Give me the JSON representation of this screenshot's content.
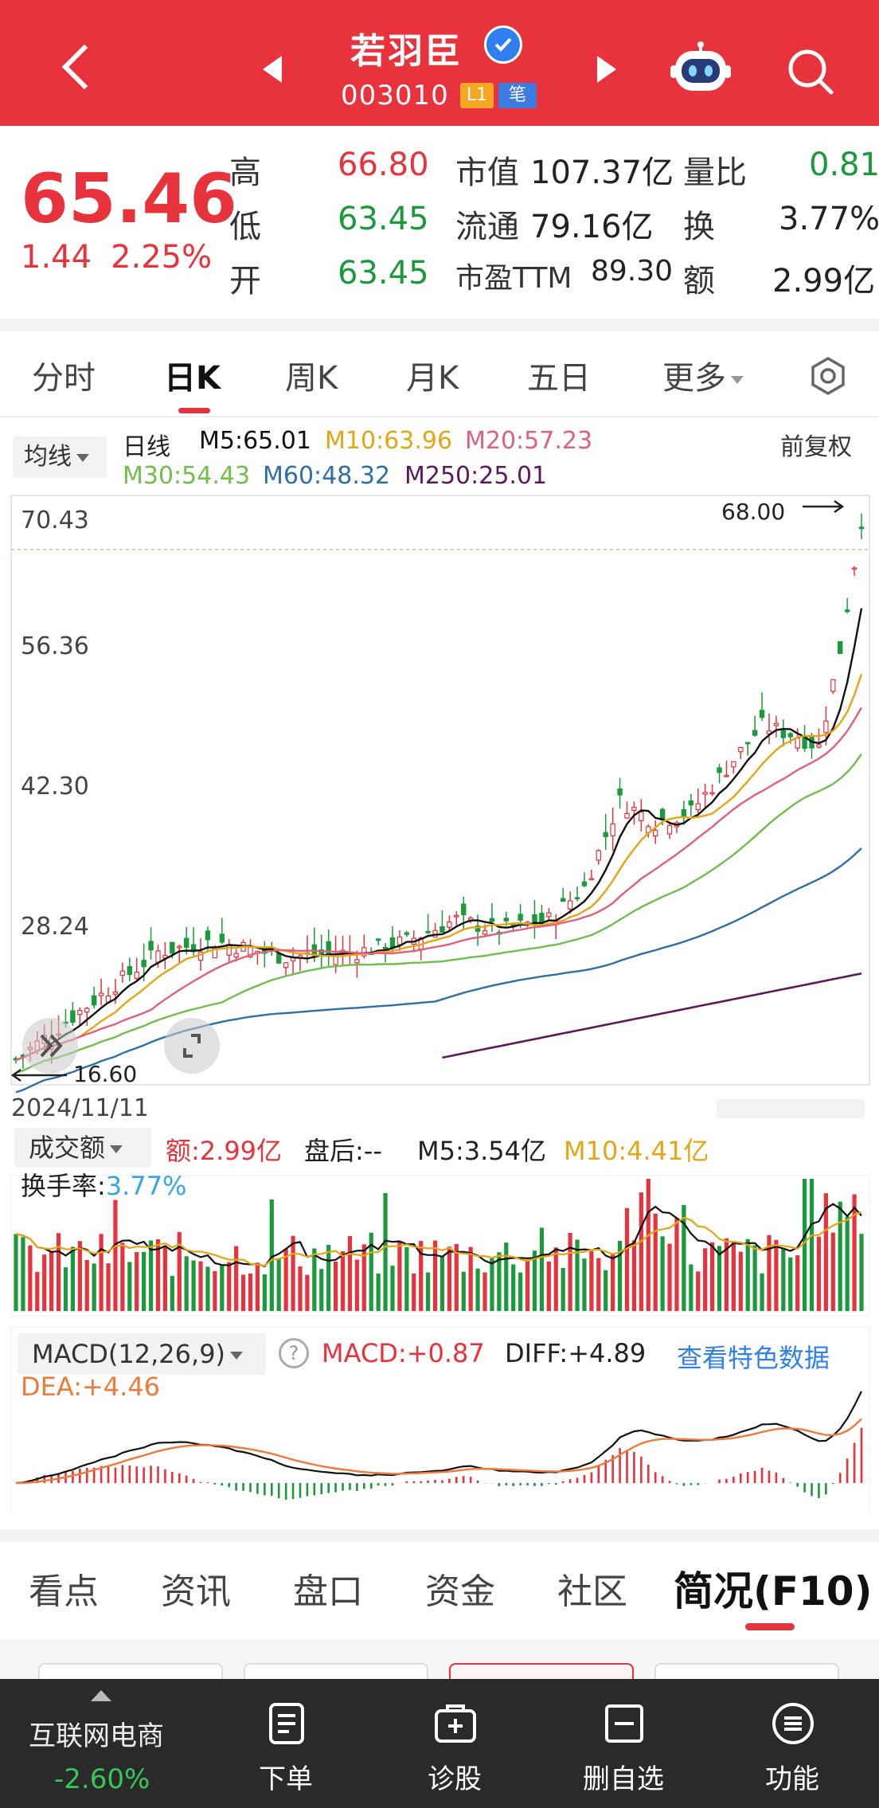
{
  "header": {
    "title": "若羽臣",
    "code": "003010",
    "badge_l1": "L1",
    "badge_bi": "笔"
  },
  "quote": {
    "price": "65.46",
    "change": "1.44",
    "change_pct": "2.25%",
    "rows": [
      {
        "l1": "高",
        "v1": "66.80",
        "l2": "市值",
        "v2": "107.37亿",
        "l3": "量比",
        "v3": "0.81"
      },
      {
        "l1": "低",
        "v1": "63.45",
        "l2": "流通",
        "v2": "79.16亿",
        "l3": "换",
        "v3": "3.77%"
      },
      {
        "l1": "开",
        "v1": "63.45",
        "l2": "市盈TTM",
        "v2": "89.30",
        "l3": "额",
        "v3": "2.99亿"
      }
    ]
  },
  "period_tabs": [
    "分时",
    "日K",
    "周K",
    "月K",
    "五日",
    "更多"
  ],
  "ma_legend": {
    "dropdown": "均线",
    "label": "日线",
    "m5": "M5:65.01",
    "m10": "M10:63.96",
    "m20": "M20:57.23",
    "m30": "M30:54.43",
    "m60": "M60:48.32",
    "m250": "M250:25.01",
    "adjust": "前复权"
  },
  "price_axis": [
    "70.43",
    "56.36",
    "42.30",
    "28.24"
  ],
  "high_mark": "68.00",
  "low_mark": "16.60",
  "start_date": "2024/11/11",
  "volume_legend": {
    "dropdown": "成交额",
    "amount": "额:2.99亿",
    "after": "盘后:--",
    "m5": "M5:3.54亿",
    "m10": "M10:4.41亿",
    "turnover_label": "换手率:",
    "turnover_value": "3.77%"
  },
  "macd_legend": {
    "dropdown": "MACD(12,26,9)",
    "help": "?",
    "macd": "MACD:+0.87",
    "diff": "DIFF:+4.89",
    "link": "查看特色数据",
    "dea": "DEA:+4.46"
  },
  "content_tabs": [
    "看点",
    "资讯",
    "盘口",
    "资金",
    "社区",
    "简况(F10)"
  ],
  "bottom_bar": {
    "sector": "互联网电商",
    "sector_pct": "-2.60%",
    "items": [
      "下单",
      "诊股",
      "删自选",
      "功能"
    ]
  },
  "colors": {
    "up": "#e8323c",
    "down": "#1a9a3a",
    "m5": "#111111",
    "m10": "#e6a512",
    "m20": "#e2607c",
    "m30": "#6fbf4a",
    "m60": "#2f6fa8",
    "m250": "#5c1a5e"
  }
}
